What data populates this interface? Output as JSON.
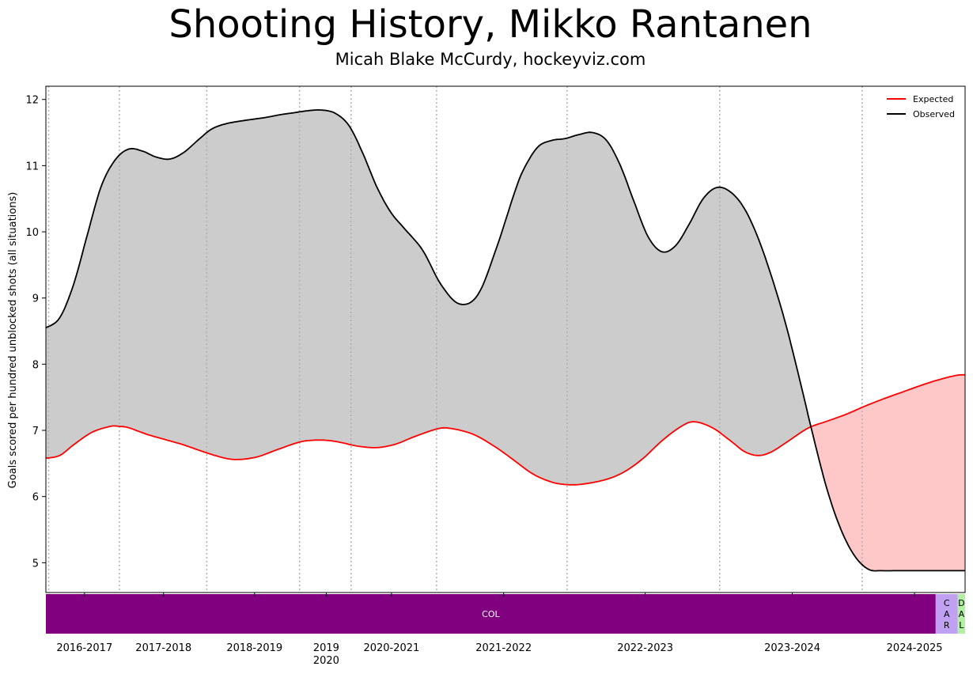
{
  "header": {
    "title": "Shooting History, Mikko Rantanen",
    "subtitle": "Micah Blake McCurdy, hockeyviz.com"
  },
  "chart_data": {
    "type": "line",
    "title": "Shooting History, Mikko Rantanen",
    "subtitle": "Micah Blake McCurdy, hockeyviz.com",
    "ylabel": "Goals scored per hundred unblocked shots (all situations)",
    "xlabel": "",
    "ylim": [
      4.55,
      12.2
    ],
    "xlim": [
      0,
      100
    ],
    "yticks": [
      5,
      6,
      7,
      8,
      9,
      10,
      11,
      12
    ],
    "grid": false,
    "legend_placement": "top-right",
    "season_labels": [
      {
        "label": "2016-2017",
        "x": 4.2
      },
      {
        "label": "2017-2018",
        "x": 12.8
      },
      {
        "label": "2018-2019",
        "x": 22.7
      },
      {
        "label": "2019\n2020",
        "x": 30.5
      },
      {
        "label": "2020-2021",
        "x": 37.6
      },
      {
        "label": "2021-2022",
        "x": 49.8
      },
      {
        "label": "2022-2023",
        "x": 65.2
      },
      {
        "label": "2023-2024",
        "x": 81.2
      },
      {
        "label": "2024-2025",
        "x": 94.5
      }
    ],
    "season_boundaries": [
      0.3,
      8.0,
      17.5,
      27.6,
      33.2,
      42.5,
      56.7,
      73.3,
      88.8
    ],
    "teams": [
      {
        "name": "COL",
        "start": 0,
        "end": 96.8,
        "color": "#800080",
        "text_color": "#ffffff"
      },
      {
        "name": "CAR",
        "start": 96.8,
        "end": 99.2,
        "color": "#c0a0f0",
        "text_color": "#000000"
      },
      {
        "name": "DAL",
        "start": 99.2,
        "end": 100,
        "color": "#b0f0a0",
        "text_color": "#000000"
      }
    ],
    "series": [
      {
        "name": "Expected",
        "color": "#ff0000",
        "x": [
          0,
          1.5,
          3.0,
          5.0,
          7.0,
          8.0,
          9.0,
          11.0,
          13.0,
          15.0,
          17.5,
          19.5,
          21.0,
          23.0,
          25.0,
          27.5,
          29.0,
          30.5,
          32.0,
          34.0,
          36.0,
          38.0,
          40.0,
          42.5,
          44.0,
          46.5,
          49.0,
          51.0,
          53.0,
          55.0,
          56.7,
          58.5,
          61.0,
          63.0,
          65.0,
          67.0,
          69.0,
          70.5,
          72.5,
          74.5,
          76.0,
          77.5,
          79.0,
          81.0,
          83.0,
          85.0,
          87.0,
          89.0,
          91.0,
          93.0,
          95.0,
          97.0,
          99.0,
          100
        ],
        "values": [
          6.58,
          6.62,
          6.78,
          6.97,
          7.06,
          7.06,
          7.04,
          6.94,
          6.86,
          6.78,
          6.66,
          6.58,
          6.56,
          6.6,
          6.7,
          6.82,
          6.85,
          6.85,
          6.82,
          6.76,
          6.74,
          6.79,
          6.9,
          7.02,
          7.03,
          6.94,
          6.74,
          6.54,
          6.34,
          6.22,
          6.18,
          6.19,
          6.26,
          6.38,
          6.58,
          6.84,
          7.05,
          7.13,
          7.04,
          6.84,
          6.68,
          6.62,
          6.68,
          6.86,
          7.04,
          7.14,
          7.24,
          7.36,
          7.47,
          7.57,
          7.67,
          7.76,
          7.83,
          7.84
        ]
      },
      {
        "name": "Observed",
        "color": "#000000",
        "x": [
          0,
          1.5,
          3.0,
          4.5,
          6.0,
          7.5,
          9.0,
          10.5,
          12.0,
          13.5,
          15.0,
          16.5,
          18.0,
          19.5,
          21.0,
          22.5,
          24.0,
          25.5,
          27.0,
          28.5,
          30.0,
          31.5,
          33.0,
          34.5,
          36.0,
          37.5,
          39.0,
          41.0,
          43.0,
          45.0,
          47.0,
          49.0,
          51.0,
          52.0,
          53.5,
          55.0,
          56.5,
          58.0,
          59.5,
          61.0,
          62.5,
          64.0,
          65.5,
          67.0,
          68.5,
          70.0,
          71.5,
          73.0,
          74.5,
          76.0,
          77.5,
          79.0,
          80.5,
          82.0,
          83.5,
          85.0,
          86.5,
          88.0,
          89.5,
          91.0,
          92.5,
          94.0,
          95.5,
          97.0,
          98.5,
          100
        ],
        "values": [
          8.55,
          8.7,
          9.2,
          9.95,
          10.68,
          11.08,
          11.25,
          11.22,
          11.13,
          11.1,
          11.2,
          11.38,
          11.55,
          11.63,
          11.67,
          11.7,
          11.73,
          11.77,
          11.8,
          11.83,
          11.84,
          11.79,
          11.6,
          11.18,
          10.68,
          10.3,
          10.05,
          9.72,
          9.2,
          8.91,
          9.05,
          9.75,
          10.6,
          10.95,
          11.28,
          11.38,
          11.41,
          11.47,
          11.5,
          11.38,
          11.0,
          10.45,
          9.93,
          9.7,
          9.79,
          10.12,
          10.5,
          10.67,
          10.6,
          10.35,
          9.9,
          9.3,
          8.6,
          7.77,
          6.9,
          6.1,
          5.5,
          5.1,
          4.9,
          4.88,
          4.88,
          4.88,
          4.88,
          4.88,
          4.88,
          4.88
        ]
      }
    ]
  }
}
